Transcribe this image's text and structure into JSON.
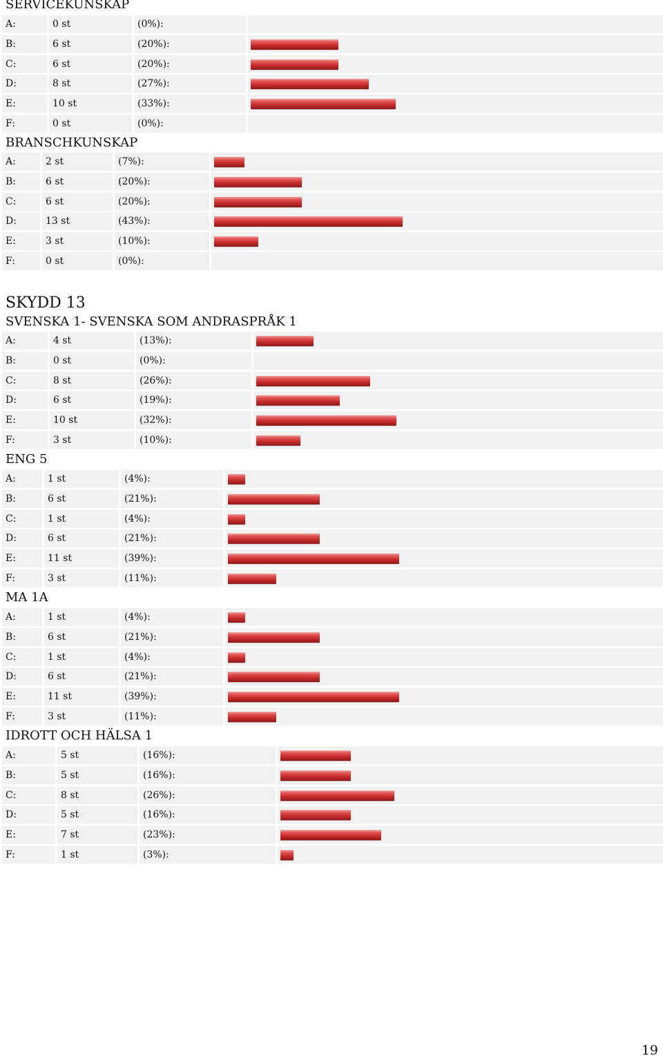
{
  "sections": [
    {
      "heading": "SERVICEKUNSKAP",
      "rows": [
        {
          "grade": "A:",
          "count": "0 st",
          "percent": "(0%):",
          "value": 0
        },
        {
          "grade": "B:",
          "count": "6 st",
          "percent": "(20%):",
          "value": 20
        },
        {
          "grade": "C:",
          "count": "6 st",
          "percent": "(20%):",
          "value": 20
        },
        {
          "grade": "D:",
          "count": "8 st",
          "percent": "(27%):",
          "value": 27
        },
        {
          "grade": "E:",
          "count": "10 st",
          "percent": "(33%):",
          "value": 33
        },
        {
          "grade": "F:",
          "count": "0 st",
          "percent": "(0%):",
          "value": 0
        }
      ]
    },
    {
      "heading": "BRANSCHKUNSKAP",
      "rows": [
        {
          "grade": "A:",
          "count": "2 st",
          "percent": "(7%):",
          "value": 7
        },
        {
          "grade": "B:",
          "count": "6 st",
          "percent": "(20%):",
          "value": 20
        },
        {
          "grade": "C:",
          "count": "6 st",
          "percent": "(20%):",
          "value": 20
        },
        {
          "grade": "D:",
          "count": "13 st",
          "percent": "(43%):",
          "value": 43
        },
        {
          "grade": "E:",
          "count": "3 st",
          "percent": "(10%):",
          "value": 10
        },
        {
          "grade": "F:",
          "count": "0 st",
          "percent": "(0%):",
          "value": 0
        }
      ]
    },
    {
      "title": "SKYDD 13",
      "heading": "SVENSKA 1- SVENSKA SOM ANDRASPRÅK 1",
      "rows": [
        {
          "grade": "A:",
          "count": "4 st",
          "percent": "(13%):",
          "value": 13
        },
        {
          "grade": "B:",
          "count": "0 st",
          "percent": "(0%):",
          "value": 0
        },
        {
          "grade": "C:",
          "count": "8 st",
          "percent": "(26%):",
          "value": 26
        },
        {
          "grade": "D:",
          "count": "6 st",
          "percent": "(19%):",
          "value": 19
        },
        {
          "grade": "E:",
          "count": "10 st",
          "percent": "(32%):",
          "value": 32
        },
        {
          "grade": "F:",
          "count": "3 st",
          "percent": "(10%):",
          "value": 10
        }
      ]
    },
    {
      "heading": "ENG 5",
      "rows": [
        {
          "grade": "A:",
          "count": "1 st",
          "percent": "(4%):",
          "value": 4
        },
        {
          "grade": "B:",
          "count": "6 st",
          "percent": "(21%):",
          "value": 21
        },
        {
          "grade": "C:",
          "count": "1 st",
          "percent": "(4%):",
          "value": 4
        },
        {
          "grade": "D:",
          "count": "6 st",
          "percent": "(21%):",
          "value": 21
        },
        {
          "grade": "E:",
          "count": "11 st",
          "percent": "(39%):",
          "value": 39
        },
        {
          "grade": "F:",
          "count": "3 st",
          "percent": "(11%):",
          "value": 11
        }
      ]
    },
    {
      "heading": "MA 1A",
      "rows": [
        {
          "grade": "A:",
          "count": "1 st",
          "percent": "(4%):",
          "value": 4
        },
        {
          "grade": "B:",
          "count": "6 st",
          "percent": "(21%):",
          "value": 21
        },
        {
          "grade": "C:",
          "count": "1 st",
          "percent": "(4%):",
          "value": 4
        },
        {
          "grade": "D:",
          "count": "6 st",
          "percent": "(21%):",
          "value": 21
        },
        {
          "grade": "E:",
          "count": "11 st",
          "percent": "(39%):",
          "value": 39
        },
        {
          "grade": "F:",
          "count": "3 st",
          "percent": "(11%):",
          "value": 11
        }
      ]
    },
    {
      "heading": "IDROTT OCH HÄLSA 1",
      "rows": [
        {
          "grade": "A:",
          "count": "5 st",
          "percent": "(16%):",
          "value": 16
        },
        {
          "grade": "B:",
          "count": "5 st",
          "percent": "(16%):",
          "value": 16
        },
        {
          "grade": "C:",
          "count": "8 st",
          "percent": "(26%):",
          "value": 26
        },
        {
          "grade": "D:",
          "count": "5 st",
          "percent": "(16%):",
          "value": 16
        },
        {
          "grade": "E:",
          "count": "7 st",
          "percent": "(23%):",
          "value": 23
        },
        {
          "grade": "F:",
          "count": "1 st",
          "percent": "(3%):",
          "value": 3
        }
      ]
    }
  ],
  "page_number": "19",
  "colors": {
    "bar": "#c62a2a",
    "row_background": "#f1f1f1"
  }
}
